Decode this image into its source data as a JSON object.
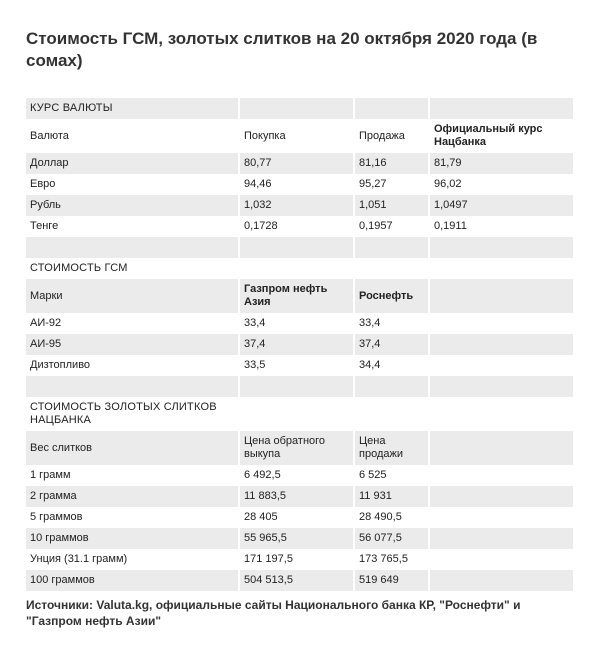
{
  "title": "Стоимость ГСМ, золотых слитков на 20 октября 2020 года (в сомах)",
  "sections": [
    {
      "title": "КУРС ВАЛЮТЫ",
      "header": [
        "Валюта",
        "Покупка",
        "Продажа",
        "Официальный курс Нацбанка"
      ],
      "rows": [
        [
          "Доллар",
          "80,77",
          "81,16",
          "81,79"
        ],
        [
          "Евро",
          "94,46",
          "95,27",
          "96,02"
        ],
        [
          "Рубль",
          "1,032",
          "1,051",
          "1,0497"
        ],
        [
          "Тенге",
          "0,1728",
          "0,1957",
          "0,1911"
        ]
      ]
    },
    {
      "title": "СТОИМОСТЬ ГСМ",
      "header": [
        "Марки",
        "Газпром нефть Азия",
        "Роснефть"
      ],
      "rows": [
        [
          "АИ-92",
          "33,4",
          "33,4"
        ],
        [
          "АИ-95",
          "37,4",
          "37,4"
        ],
        [
          "Дизтопливо",
          "33,5",
          "34,4"
        ]
      ]
    },
    {
      "title": "СТОИМОСТЬ ЗОЛОТЫХ СЛИТКОВ НАЦБАНКА",
      "header": [
        "Вес слитков",
        "Цена обратного выкупа",
        "Цена продажи"
      ],
      "rows": [
        [
          "1 грамм",
          "6 492,5",
          "6 525"
        ],
        [
          "2 грамма",
          "11 883,5",
          "11 931"
        ],
        [
          "5 граммов",
          "28 405",
          "28 490,5"
        ],
        [
          "10 граммов",
          "55 965,5",
          "56 077,5"
        ],
        [
          "Унция (31.1 грамм)",
          "171 197,5",
          "173 765,5"
        ],
        [
          "100 граммов",
          "504 513,5",
          "519 649"
        ]
      ]
    }
  ],
  "source": "Источники: Valuta.kg, официальные сайты Национального банка КР, \"Роснефти\" и \"Газпром нефть Азии\""
}
